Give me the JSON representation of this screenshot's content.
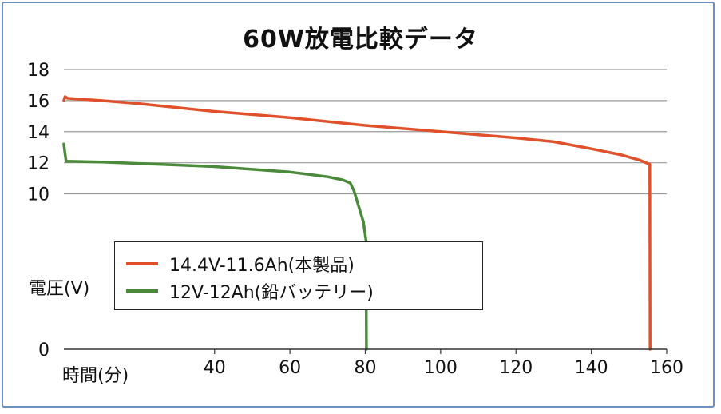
{
  "chart_data": {
    "type": "line",
    "title": "60W放電比較データ",
    "xlabel": "時間(分)",
    "ylabel": "電圧(V)",
    "xlim": [
      0,
      160
    ],
    "ylim": [
      0,
      18
    ],
    "x_ticks": [
      "40",
      "60",
      "80",
      "100",
      "120",
      "140",
      "160"
    ],
    "y_ticks": [
      "0",
      "10",
      "12",
      "14",
      "16",
      "18"
    ],
    "grid": true,
    "legend_position": "middle-left",
    "series": [
      {
        "name": "14.4V-11.6Ah(本製品)",
        "color": "#e0502a",
        "points": [
          [
            0,
            16.0
          ],
          [
            0.3,
            16.25
          ],
          [
            1,
            16.15
          ],
          [
            10,
            16.0
          ],
          [
            20,
            15.8
          ],
          [
            40,
            15.3
          ],
          [
            60,
            14.9
          ],
          [
            80,
            14.4
          ],
          [
            100,
            14.0
          ],
          [
            120,
            13.6
          ],
          [
            130,
            13.35
          ],
          [
            140,
            12.9
          ],
          [
            148,
            12.5
          ],
          [
            153,
            12.15
          ],
          [
            155.5,
            11.9
          ],
          [
            155.6,
            0
          ]
        ]
      },
      {
        "name": "12V-12Ah(鉛バッテリー)",
        "color": "#4a8a3a",
        "points": [
          [
            0,
            13.2
          ],
          [
            0.3,
            12.6
          ],
          [
            0.6,
            12.1
          ],
          [
            10,
            12.05
          ],
          [
            20,
            11.95
          ],
          [
            40,
            11.75
          ],
          [
            60,
            11.4
          ],
          [
            70,
            11.1
          ],
          [
            74,
            10.9
          ],
          [
            76,
            10.7
          ],
          [
            77,
            10.2
          ],
          [
            78.5,
            9.0
          ],
          [
            79.5,
            8.2
          ],
          [
            80.2,
            7.0
          ],
          [
            80.3,
            0
          ]
        ]
      }
    ]
  }
}
